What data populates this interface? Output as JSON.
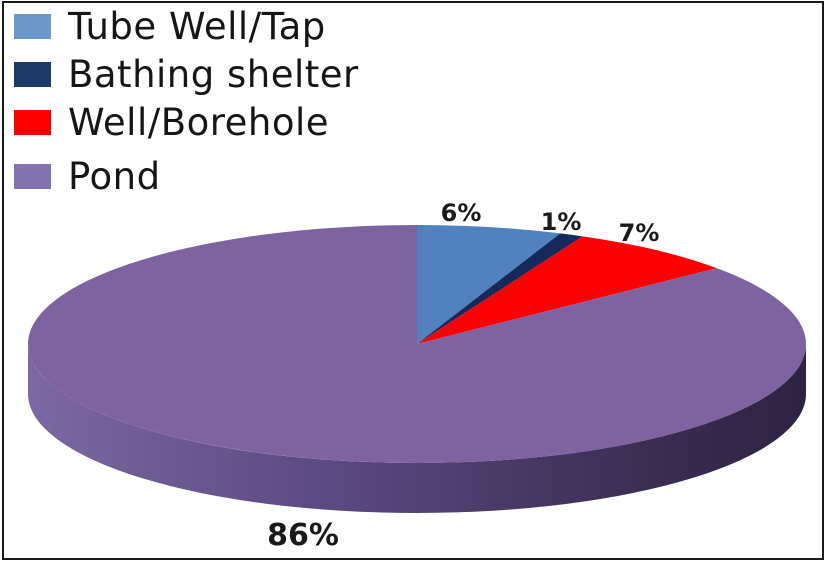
{
  "chart_data": {
    "type": "pie",
    "style": "3d",
    "title": "",
    "categories": [
      "Tube Well/Tap",
      "Bathing shelter",
      "Well/Borehole",
      "Pond"
    ],
    "values": [
      6,
      1,
      7,
      86
    ],
    "labels": [
      "6%",
      "1%",
      "7%",
      "86%"
    ],
    "slice_colors": [
      "#5282BE",
      "#15295A",
      "#FB0104",
      "#7E63A1"
    ],
    "legend_colors": [
      "#6C97C9",
      "#1B3A68",
      "#FF0000",
      "#8573B1"
    ],
    "side_gradient": [
      "#7C68A2",
      "#5B4880",
      "#3F3057",
      "#2E2242"
    ],
    "start_angle_deg": 0,
    "direction": "clockwise",
    "legend_position": "top-left",
    "background_color": "#FFFFFF",
    "border_color": "#1B1B1B"
  }
}
